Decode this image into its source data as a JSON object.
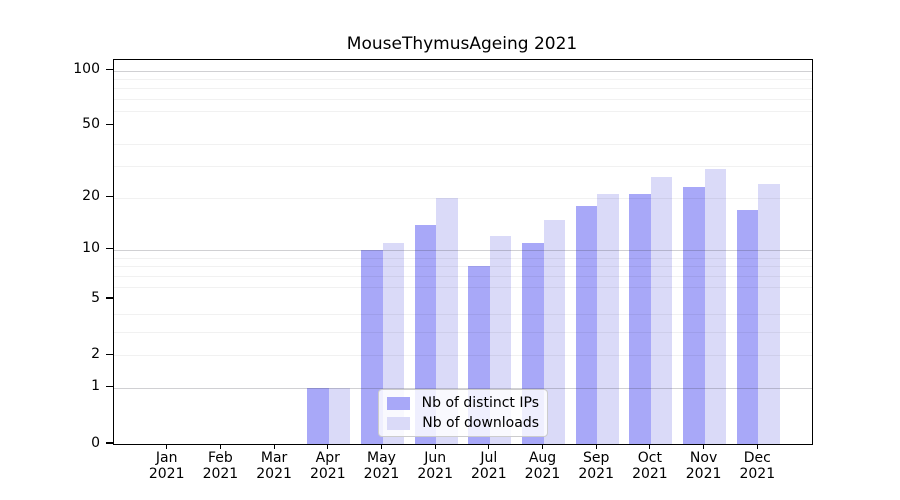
{
  "title": "MouseThymusAgeing 2021",
  "chart_data": {
    "type": "bar",
    "title": "MouseThymusAgeing 2021",
    "categories": [
      "Jan",
      "Feb",
      "Mar",
      "Apr",
      "May",
      "Jun",
      "Jul",
      "Aug",
      "Sep",
      "Oct",
      "Nov",
      "Dec"
    ],
    "year_label": "2021",
    "series": [
      {
        "name": "Nb of distinct IPs",
        "color": "#a8a8f8",
        "values": [
          0,
          0,
          0,
          1,
          10,
          14,
          8,
          11,
          18,
          21,
          23,
          17
        ]
      },
      {
        "name": "Nb of downloads",
        "color": "#dadaf8",
        "values": [
          0,
          0,
          0,
          1,
          11,
          20,
          12,
          15,
          21,
          26,
          29,
          24
        ]
      }
    ],
    "xlabel": "",
    "ylabel": "",
    "yscale": "log1p",
    "ylim": [
      0,
      113
    ],
    "yticks": [
      0,
      1,
      2,
      5,
      10,
      20,
      50,
      100
    ],
    "major_gridlines": [
      1,
      10,
      100
    ],
    "minor_gridlines": [
      2,
      3,
      4,
      6,
      7,
      8,
      9,
      20,
      30,
      40,
      60,
      70,
      80,
      90
    ],
    "grid": true,
    "legend_position": "lower center"
  }
}
